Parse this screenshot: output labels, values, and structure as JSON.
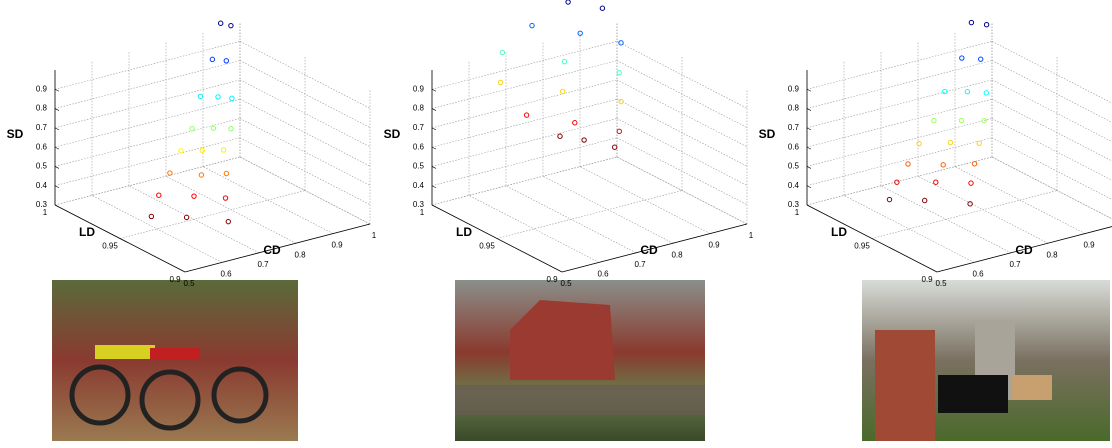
{
  "chart_data": [
    {
      "type": "scatter3d",
      "xlabel": "CD",
      "ylabel": "LD",
      "zlabel": "SD",
      "colormap": "jet_r",
      "x": [
        0.62,
        0.68,
        0.74,
        0.64,
        0.7,
        0.75,
        0.67,
        0.72,
        0.77,
        0.7,
        0.74,
        0.78,
        0.73,
        0.77,
        0.8,
        0.77,
        0.8,
        0.82,
        0.82,
        0.84,
        0.86,
        0.87
      ],
      "y": [
        0.96,
        0.95,
        0.935,
        0.96,
        0.95,
        0.94,
        0.96,
        0.95,
        0.945,
        0.96,
        0.955,
        0.95,
        0.96,
        0.955,
        0.95,
        0.965,
        0.96,
        0.955,
        0.97,
        0.965,
        0.975,
        0.97
      ],
      "z": [
        0.32,
        0.32,
        0.32,
        0.42,
        0.42,
        0.42,
        0.52,
        0.52,
        0.52,
        0.62,
        0.62,
        0.62,
        0.72,
        0.72,
        0.72,
        0.85,
        0.85,
        0.85,
        1.0,
        1.0,
        1.15,
        1.15
      ],
      "xlim": [
        0.5,
        1
      ],
      "ylim": [
        0.9,
        1
      ],
      "zlim": [
        0.3,
        1
      ],
      "xticks": [
        0.5,
        0.6,
        0.7,
        0.8,
        0.9,
        1
      ],
      "yticks": [
        0.9,
        0.95,
        1
      ],
      "zticks": [
        0.3,
        0.4,
        0.5,
        0.6,
        0.7,
        0.8,
        0.9
      ],
      "grid": true
    },
    {
      "type": "scatter3d",
      "xlabel": "CD",
      "ylabel": "LD",
      "zlabel": "SD",
      "colormap": "jet_r",
      "x": [
        0.6,
        0.63,
        0.66,
        0.58,
        0.64,
        0.69,
        0.58,
        0.66,
        0.73,
        0.62,
        0.7,
        0.76,
        0.7,
        0.76,
        0.8,
        0.78,
        0.82
      ],
      "y": [
        0.93,
        0.92,
        0.905,
        0.95,
        0.93,
        0.91,
        0.97,
        0.945,
        0.92,
        0.98,
        0.955,
        0.93,
        0.98,
        0.96,
        0.94,
        0.975,
        0.96
      ],
      "z": [
        0.85,
        0.85,
        0.85,
        0.9,
        0.9,
        0.9,
        1.0,
        1.0,
        1.0,
        1.1,
        1.1,
        1.1,
        1.2,
        1.2,
        1.2,
        1.3,
        1.3
      ],
      "xlim": [
        0.5,
        1
      ],
      "ylim": [
        0.9,
        1
      ],
      "zlim": [
        0.3,
        1
      ],
      "xticks": [
        0.5,
        0.6,
        0.7,
        0.8,
        0.9,
        1
      ],
      "yticks": [
        0.9,
        0.95,
        1
      ],
      "zticks": [
        0.3,
        0.4,
        0.5,
        0.6,
        0.7,
        0.8,
        0.9
      ],
      "grid": true
    },
    {
      "type": "scatter3d",
      "xlabel": "CD",
      "ylabel": "LD",
      "zlabel": "SD",
      "colormap": "jet_r",
      "x": [
        0.6,
        0.66,
        0.73,
        0.62,
        0.69,
        0.75,
        0.65,
        0.71,
        0.77,
        0.68,
        0.74,
        0.79,
        0.72,
        0.77,
        0.81,
        0.76,
        0.8,
        0.83,
        0.82,
        0.85,
        0.86,
        0.88
      ],
      "y": [
        0.965,
        0.955,
        0.94,
        0.965,
        0.955,
        0.945,
        0.965,
        0.955,
        0.948,
        0.965,
        0.958,
        0.95,
        0.965,
        0.958,
        0.952,
        0.968,
        0.962,
        0.956,
        0.972,
        0.966,
        0.976,
        0.97
      ],
      "z": [
        0.4,
        0.4,
        0.4,
        0.48,
        0.48,
        0.48,
        0.56,
        0.56,
        0.56,
        0.65,
        0.65,
        0.65,
        0.75,
        0.75,
        0.75,
        0.87,
        0.87,
        0.87,
        1.0,
        1.0,
        1.15,
        1.15
      ],
      "xlim": [
        0.5,
        1
      ],
      "ylim": [
        0.9,
        1
      ],
      "zlim": [
        0.3,
        1
      ],
      "xticks": [
        0.5,
        0.6,
        0.7,
        0.8,
        0.9,
        1
      ],
      "yticks": [
        0.9,
        0.95,
        1
      ],
      "zticks": [
        0.3,
        0.4,
        0.5,
        0.6,
        0.7,
        0.8,
        0.9
      ],
      "grid": true
    }
  ]
}
